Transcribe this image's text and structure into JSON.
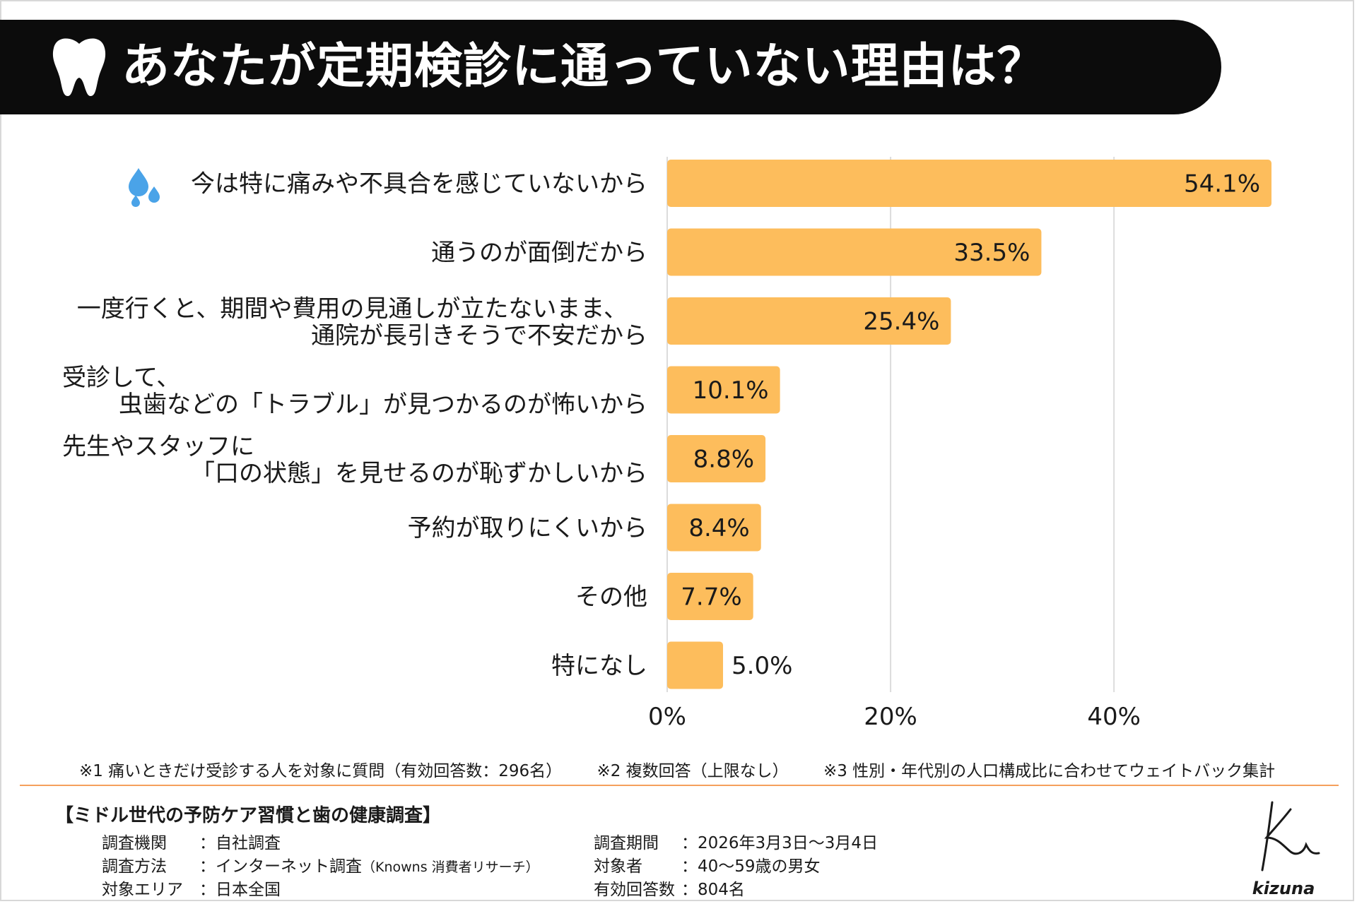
{
  "title": "あなたが定期検診に通っていない理由は？",
  "colors": {
    "bar": "#fdbd5c",
    "banner": "#0c0c0c",
    "divider": "#f5a05c",
    "drop_icon": "#4aa3e8"
  },
  "chart_data": {
    "type": "bar",
    "orientation": "horizontal",
    "title": "あなたが定期検診に通っていない理由は？",
    "categories": [
      [
        "今は特に痛みや不具合を感じていないから"
      ],
      [
        "通うのが面倒だから"
      ],
      [
        "一度行くと、期間や費用の見通しが立たないまま、",
        "通院が長引きそうで不安だから"
      ],
      [
        "受診して、",
        "虫歯などの「トラブル」が見つかるのが怖いから"
      ],
      [
        "先生やスタッフに",
        "「口の状態」を見せるのが恥ずかしいから"
      ],
      [
        "予約が取りにくいから"
      ],
      [
        "その他"
      ],
      [
        "特になし"
      ]
    ],
    "values": [
      54.1,
      33.5,
      25.4,
      10.1,
      8.8,
      8.4,
      7.7,
      5.0
    ],
    "value_labels": [
      "54.1%",
      "33.5%",
      "25.4%",
      "10.1%",
      "8.8%",
      "8.4%",
      "7.7%",
      "5.0%"
    ],
    "xlim": [
      0,
      54.1
    ],
    "xticks": [
      0,
      20,
      40
    ],
    "xtick_labels": [
      "0%",
      "20%",
      "40%"
    ],
    "grid": true,
    "xlabel": "",
    "ylabel": ""
  },
  "notes": [
    "※1 痛いときだけ受診する人を対象に質問（有効回答数：296名）",
    "※2 複数回答（上限なし）",
    "※3 性別・年代別の人口構成比に合わせてウェイトバック集計"
  ],
  "survey": {
    "heading": "【ミドル世代の予防ケア習慣と歯の健康調査】",
    "org_key": "調査機関",
    "org_val": "：自社調査",
    "method_key": "調査方法",
    "method_val": "：インターネット調査",
    "method_sub": "（Knowns 消費者リサーチ）",
    "area_key": "対象エリア",
    "area_val": "：日本全国",
    "period_key": "調査期間",
    "period_val": "：2026年3月3日～3月4日",
    "target_key": "対象者",
    "target_val": "：40～59歳の男女",
    "valid_key": "有効回答数",
    "valid_val": "：804名"
  },
  "logo": {
    "text": "kizuna"
  }
}
